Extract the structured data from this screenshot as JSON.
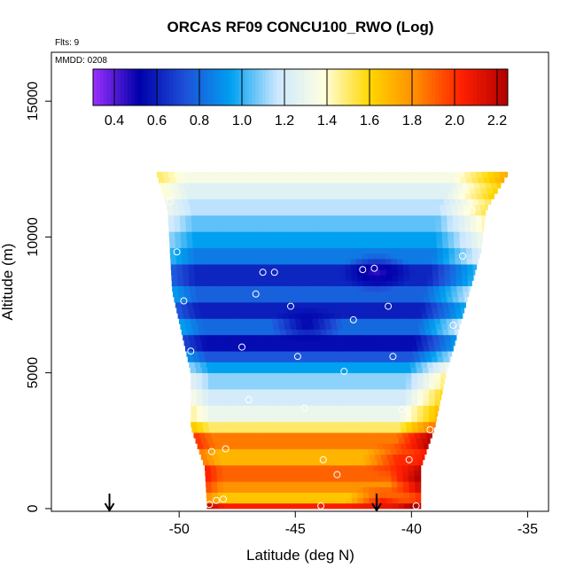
{
  "chart_data": {
    "type": "heatmap",
    "title": "ORCAS RF09 CONCU100_RWO (Log)",
    "annotations": {
      "flights": "Flts: 9",
      "date": "MMDD: 0208"
    },
    "xlabel": "Latitude (deg N)",
    "ylabel": "Altitude (m)",
    "xlim": [
      -55.5,
      -34.1
    ],
    "ylim": [
      -100,
      16800
    ],
    "xticks": [
      -50,
      -45,
      -40,
      -35
    ],
    "xtick_labels": [
      "-50",
      "-45",
      "-40",
      "-35"
    ],
    "yticks": [
      0,
      5000,
      10000,
      15000
    ],
    "ytick_labels": [
      "0",
      "5000",
      "10000",
      "15000"
    ],
    "colorbar": {
      "ticks": [
        0.4,
        0.6,
        0.8,
        1.0,
        1.2,
        1.4,
        1.6,
        1.8,
        2.0,
        2.2
      ],
      "tick_labels": [
        "0.4",
        "0.6",
        "0.8",
        "1.0",
        "1.2",
        "1.4",
        "1.6",
        "1.8",
        "2.0",
        "2.2"
      ],
      "range": [
        0.3,
        2.25
      ],
      "colors": [
        "#9b30ff",
        "#0000aa",
        "#1e50d8",
        "#00a0f0",
        "#cce8ff",
        "#ffffe0",
        "#ffd700",
        "#ff8c00",
        "#ff2000",
        "#b00000"
      ]
    },
    "domain_profile": {
      "altitudes": [
        0,
        1500,
        3000,
        5000,
        6500,
        8000,
        9500,
        11000,
        12400
      ],
      "lat_left": [
        -48.8,
        -48.9,
        -49.5,
        -49.5,
        -49.9,
        -50.3,
        -50.4,
        -50.5,
        -51.0
      ],
      "lat_right": [
        -39.6,
        -39.6,
        -39.0,
        -38.5,
        -38.0,
        -37.5,
        -37.0,
        -36.8,
        -35.8
      ]
    },
    "layers": [
      {
        "z": [
          0,
          250
        ],
        "value": 2.05
      },
      {
        "z": [
          250,
          600
        ],
        "value": 1.65
      },
      {
        "z": [
          600,
          1100
        ],
        "value": 1.8
      },
      {
        "z": [
          1100,
          1600
        ],
        "value": 1.9
      },
      {
        "z": [
          1600,
          2300
        ],
        "value": 1.7
      },
      {
        "z": [
          2300,
          2800
        ],
        "value": 1.85
      },
      {
        "z": [
          2800,
          3300
        ],
        "value": 1.5
      },
      {
        "z": [
          3300,
          3800
        ],
        "value": 1.3
      },
      {
        "z": [
          3800,
          4500
        ],
        "value": 1.2
      },
      {
        "z": [
          4500,
          5000
        ],
        "value": 1.1
      },
      {
        "z": [
          5000,
          5400
        ],
        "value": 0.95
      },
      {
        "z": [
          5400,
          5900
        ],
        "value": 0.75
      },
      {
        "z": [
          5900,
          6400
        ],
        "value": 0.55
      },
      {
        "z": [
          6400,
          7000
        ],
        "value": 0.8
      },
      {
        "z": [
          7000,
          7700
        ],
        "value": 0.6
      },
      {
        "z": [
          7700,
          8300
        ],
        "value": 0.78
      },
      {
        "z": [
          8300,
          9000
        ],
        "value": 0.62
      },
      {
        "z": [
          9000,
          9600
        ],
        "value": 0.85
      },
      {
        "z": [
          9600,
          10200
        ],
        "value": 0.95
      },
      {
        "z": [
          10200,
          10800
        ],
        "value": 1.05
      },
      {
        "z": [
          10800,
          11400
        ],
        "value": 1.15
      },
      {
        "z": [
          11400,
          12000
        ],
        "value": 1.25
      },
      {
        "z": [
          12000,
          12500
        ],
        "value": 1.35
      }
    ],
    "hotspots": [
      {
        "lat": -41.5,
        "alt": 8700,
        "value": 0.45
      },
      {
        "lat": -40.5,
        "alt": 1800,
        "value": 2.05
      },
      {
        "lat": -41.2,
        "alt": 200,
        "value": 2.1
      },
      {
        "lat": -44.5,
        "alt": 6800,
        "value": 0.5
      }
    ],
    "sample_points": [
      {
        "lat": -50.4,
        "alt": 11300
      },
      {
        "lat": -50.1,
        "alt": 9450
      },
      {
        "lat": -49.8,
        "alt": 7650
      },
      {
        "lat": -49.5,
        "alt": 5800
      },
      {
        "lat": -48.6,
        "alt": 2100
      },
      {
        "lat": -48.0,
        "alt": 2200
      },
      {
        "lat": -46.4,
        "alt": 8700
      },
      {
        "lat": -45.9,
        "alt": 8700
      },
      {
        "lat": -46.7,
        "alt": 7900
      },
      {
        "lat": -47.3,
        "alt": 5950
      },
      {
        "lat": -45.2,
        "alt": 7450
      },
      {
        "lat": -44.9,
        "alt": 5600
      },
      {
        "lat": -44.6,
        "alt": 3700
      },
      {
        "lat": -42.5,
        "alt": 6950
      },
      {
        "lat": -42.1,
        "alt": 8800
      },
      {
        "lat": -41.6,
        "alt": 8850
      },
      {
        "lat": -41.0,
        "alt": 7450
      },
      {
        "lat": -40.8,
        "alt": 5600
      },
      {
        "lat": -42.9,
        "alt": 5050
      },
      {
        "lat": -40.4,
        "alt": 3650
      },
      {
        "lat": -43.2,
        "alt": 1250
      },
      {
        "lat": -43.8,
        "alt": 1800
      },
      {
        "lat": -40.1,
        "alt": 1800
      },
      {
        "lat": -39.2,
        "alt": 2900
      },
      {
        "lat": -38.2,
        "alt": 6750
      },
      {
        "lat": -37.8,
        "alt": 9300
      },
      {
        "lat": -37.4,
        "alt": 11000
      },
      {
        "lat": -36.7,
        "alt": 12650
      },
      {
        "lat": -35.9,
        "alt": 12650
      },
      {
        "lat": -48.7,
        "alt": 150
      },
      {
        "lat": -48.1,
        "alt": 350
      },
      {
        "lat": -43.9,
        "alt": 100
      },
      {
        "lat": -39.8,
        "alt": 100
      },
      {
        "lat": -48.4,
        "alt": 300
      },
      {
        "lat": -47.0,
        "alt": 4000
      }
    ],
    "markers": [
      {
        "lat": -53.0,
        "label": "arrow"
      },
      {
        "lat": -41.5,
        "label": "arrow"
      }
    ]
  }
}
